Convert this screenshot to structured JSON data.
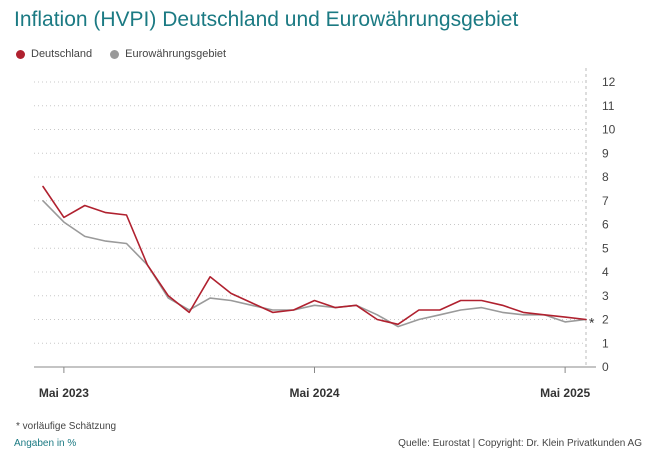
{
  "title": "Inflation (HVPI) Deutschland und Eurowährungsgebiet",
  "footnote": "* vorläufige Schätzung",
  "unit_note": "Angaben in %",
  "source": "Quelle: Eurostat | Copyright: Dr. Klein Privatkunden AG",
  "estimate_marker": "*",
  "colors": {
    "title": "#1b7a83",
    "deutschland": "#b0212f",
    "euro": "#9a9a9a",
    "grid": "#c8c8c8",
    "axis": "#888888"
  },
  "chart_data": {
    "type": "line",
    "x": [
      "2023-04",
      "2023-05",
      "2023-06",
      "2023-07",
      "2023-08",
      "2023-09",
      "2023-10",
      "2023-11",
      "2023-12",
      "2024-01",
      "2024-02",
      "2024-03",
      "2024-04",
      "2024-05",
      "2024-06",
      "2024-07",
      "2024-08",
      "2024-09",
      "2024-10",
      "2024-11",
      "2024-12",
      "2025-01",
      "2025-02",
      "2025-03",
      "2025-04",
      "2025-05",
      "2025-06"
    ],
    "x_tick_labels": [
      {
        "x": "2023-05",
        "label": "Mai 2023"
      },
      {
        "x": "2024-05",
        "label": "Mai 2024"
      },
      {
        "x": "2025-05",
        "label": "Mai 2025"
      }
    ],
    "y_ticks": [
      0,
      1,
      2,
      3,
      4,
      5,
      6,
      7,
      8,
      9,
      10,
      11,
      12
    ],
    "ylim": [
      0,
      12
    ],
    "grid": true,
    "legend_position": "top-left",
    "series": [
      {
        "name": "Deutschland",
        "values": [
          7.6,
          6.3,
          6.8,
          6.5,
          6.4,
          4.3,
          3.0,
          2.3,
          3.8,
          3.1,
          2.7,
          2.3,
          2.4,
          2.8,
          2.5,
          2.6,
          2.0,
          1.8,
          2.4,
          2.4,
          2.8,
          2.8,
          2.6,
          2.3,
          2.2,
          2.1,
          2.0
        ]
      },
      {
        "name": "Eurowährungsgebiet",
        "values": [
          7.0,
          6.1,
          5.5,
          5.3,
          5.2,
          4.3,
          2.9,
          2.4,
          2.9,
          2.8,
          2.6,
          2.4,
          2.4,
          2.6,
          2.5,
          2.6,
          2.2,
          1.7,
          2.0,
          2.2,
          2.4,
          2.5,
          2.3,
          2.2,
          2.2,
          1.9,
          2.0
        ]
      }
    ]
  }
}
